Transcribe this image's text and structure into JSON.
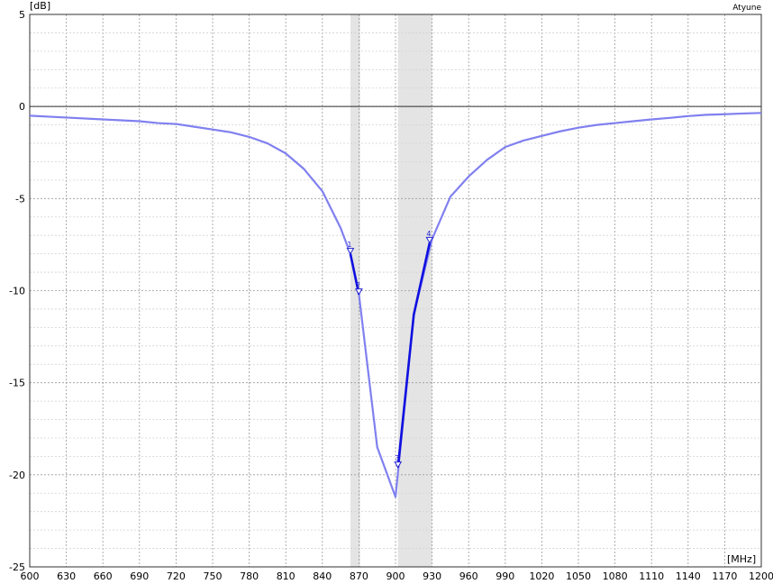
{
  "chart_data": {
    "type": "line",
    "title": "Atyune",
    "xunit": "[MHz]",
    "yunit": "[dB]",
    "xlim": [
      600,
      1200
    ],
    "ylim": [
      -25,
      5
    ],
    "xticks": [
      "600",
      "630",
      "660",
      "690",
      "720",
      "750",
      "780",
      "810",
      "840",
      "870",
      "900",
      "930",
      "960",
      "990",
      "1020",
      "1050",
      "1080",
      "1110",
      "1140",
      "1170",
      "1200"
    ],
    "yticks": [
      "5",
      "0",
      "-5",
      "-10",
      "-15",
      "-20",
      "-25"
    ],
    "grid": true,
    "reference_line_y": 0,
    "highlight_bands": [
      [
        863,
        871
      ],
      [
        902,
        930
      ]
    ],
    "series": [
      {
        "color": "#8080f0",
        "x": [
          600,
          630,
          660,
          690,
          705,
          720,
          735,
          750,
          765,
          780,
          795,
          810,
          825,
          840,
          855,
          863,
          870,
          885,
          900,
          915,
          930,
          945,
          960,
          975,
          990,
          1005,
          1020,
          1035,
          1050,
          1065,
          1080,
          1095,
          1110,
          1125,
          1140,
          1155,
          1170,
          1185,
          1200
        ],
        "y": [
          -0.5,
          -0.6,
          -0.7,
          -0.8,
          -0.9,
          -0.95,
          -1.1,
          -1.25,
          -1.4,
          -1.65,
          -2.0,
          -2.55,
          -3.4,
          -4.6,
          -6.6,
          -8.0,
          -10.2,
          -18.5,
          -21.2,
          -11.3,
          -7.2,
          -4.9,
          -3.8,
          -2.9,
          -2.2,
          -1.85,
          -1.6,
          -1.35,
          -1.15,
          -1.0,
          -0.9,
          -0.8,
          -0.7,
          -0.62,
          -0.52,
          -0.45,
          -0.42,
          -0.38,
          -0.35
        ]
      }
    ],
    "highlighted_segments": [
      {
        "color": "#1010e0",
        "x": [
          863,
          870
        ],
        "y": [
          -8.0,
          -10.2
        ]
      },
      {
        "color": "#1010e0",
        "x": [
          902,
          915,
          928
        ],
        "y": [
          -19.6,
          -11.3,
          -7.4
        ]
      }
    ],
    "markers": [
      {
        "label": "1",
        "x": 863,
        "y": -8.0
      },
      {
        "label": "2",
        "x": 870,
        "y": -10.2
      },
      {
        "label": "3",
        "x": 902,
        "y": -19.6
      },
      {
        "label": "4",
        "x": 928,
        "y": -7.4
      }
    ]
  }
}
